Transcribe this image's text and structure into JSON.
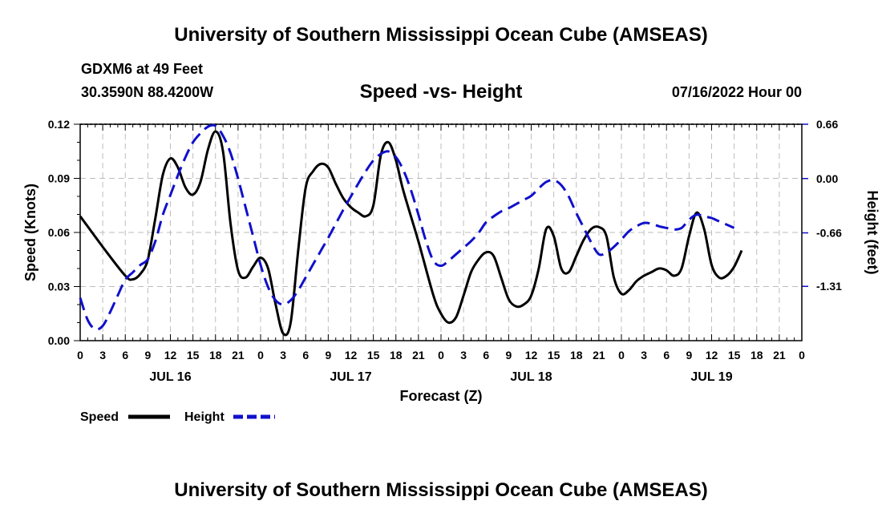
{
  "header": {
    "title": "University of Southern Mississippi Ocean Cube (AMSEAS)",
    "station": "GDXM6 at 49 Feet",
    "coords": "30.3590N  88.4200W",
    "subtitle": "Speed -vs- Height",
    "datetime": "07/16/2022 Hour 00"
  },
  "footer": {
    "title": "University of Southern Mississippi Ocean Cube (AMSEAS)"
  },
  "chart_data": {
    "type": "line",
    "title": "Speed -vs- Height",
    "xlabel": "Forecast (Z)",
    "ylabel": "Speed (Knots)",
    "y2label": "Height (feet)",
    "xlim": [
      0,
      96
    ],
    "ylim": [
      0,
      0.12
    ],
    "y2lim": [
      -1.97,
      0.66
    ],
    "grid": true,
    "x_tick_values": [
      0,
      3,
      6,
      9,
      12,
      15,
      18,
      21,
      24,
      27,
      30,
      33,
      36,
      39,
      42,
      45,
      48,
      51,
      54,
      57,
      60,
      63,
      66,
      69,
      72,
      75,
      78,
      81,
      84,
      87,
      90,
      93,
      96
    ],
    "x_tick_labels": [
      "0",
      "3",
      "6",
      "9",
      "12",
      "15",
      "18",
      "21",
      "0",
      "3",
      "6",
      "9",
      "12",
      "15",
      "18",
      "21",
      "0",
      "3",
      "6",
      "9",
      "12",
      "15",
      "18",
      "21",
      "0",
      "3",
      "6",
      "9",
      "12",
      "15",
      "18",
      "21",
      "0"
    ],
    "day_labels": [
      {
        "hour": 12,
        "label": "JUL 16"
      },
      {
        "hour": 36,
        "label": "JUL 17"
      },
      {
        "hour": 60,
        "label": "JUL 18"
      },
      {
        "hour": 84,
        "label": "JUL 19"
      }
    ],
    "y_ticks": [
      "0.00",
      "0.03",
      "0.06",
      "0.09",
      "0.12"
    ],
    "y_tick_values": [
      0,
      0.03,
      0.06,
      0.09,
      0.12
    ],
    "y2_ticks": [
      "-1.31",
      "-0.66",
      "0.00",
      "0.66"
    ],
    "y2_tick_values": [
      -1.31,
      -0.66,
      0.0,
      0.66
    ],
    "series": [
      {
        "name": "Speed",
        "axis": "left",
        "color": "#000000",
        "dash": "solid",
        "points": [
          [
            0,
            0.069
          ],
          [
            3,
            0.052
          ],
          [
            6,
            0.036
          ],
          [
            7,
            0.034
          ],
          [
            8,
            0.037
          ],
          [
            9,
            0.045
          ],
          [
            10,
            0.068
          ],
          [
            11,
            0.092
          ],
          [
            12,
            0.101
          ],
          [
            13,
            0.096
          ],
          [
            14,
            0.085
          ],
          [
            15,
            0.081
          ],
          [
            16,
            0.088
          ],
          [
            17,
            0.106
          ],
          [
            18,
            0.116
          ],
          [
            19,
            0.105
          ],
          [
            20,
            0.065
          ],
          [
            21,
            0.039
          ],
          [
            22,
            0.035
          ],
          [
            23,
            0.041
          ],
          [
            24,
            0.046
          ],
          [
            25,
            0.04
          ],
          [
            26,
            0.02
          ],
          [
            27,
            0.004
          ],
          [
            28,
            0.01
          ],
          [
            29,
            0.05
          ],
          [
            30,
            0.085
          ],
          [
            31,
            0.094
          ],
          [
            32,
            0.098
          ],
          [
            33,
            0.096
          ],
          [
            34,
            0.087
          ],
          [
            35,
            0.079
          ],
          [
            36,
            0.074
          ],
          [
            37,
            0.071
          ],
          [
            38,
            0.069
          ],
          [
            39,
            0.075
          ],
          [
            40,
            0.103
          ],
          [
            41,
            0.11
          ],
          [
            42,
            0.1
          ],
          [
            43,
            0.083
          ],
          [
            45,
            0.055
          ],
          [
            47,
            0.025
          ],
          [
            48,
            0.015
          ],
          [
            49,
            0.01
          ],
          [
            50,
            0.013
          ],
          [
            51,
            0.025
          ],
          [
            52,
            0.038
          ],
          [
            53,
            0.045
          ],
          [
            54,
            0.049
          ],
          [
            55,
            0.047
          ],
          [
            56,
            0.035
          ],
          [
            57,
            0.023
          ],
          [
            58,
            0.019
          ],
          [
            59,
            0.02
          ],
          [
            60,
            0.025
          ],
          [
            61,
            0.04
          ],
          [
            62,
            0.062
          ],
          [
            63,
            0.058
          ],
          [
            64,
            0.04
          ],
          [
            65,
            0.038
          ],
          [
            66,
            0.047
          ],
          [
            67,
            0.056
          ],
          [
            68,
            0.062
          ],
          [
            69,
            0.063
          ],
          [
            70,
            0.058
          ],
          [
            71,
            0.035
          ],
          [
            72,
            0.026
          ],
          [
            73,
            0.028
          ],
          [
            74,
            0.033
          ],
          [
            75,
            0.036
          ],
          [
            76,
            0.038
          ],
          [
            77,
            0.04
          ],
          [
            78,
            0.039
          ],
          [
            79,
            0.036
          ],
          [
            80,
            0.04
          ],
          [
            81,
            0.058
          ],
          [
            82,
            0.071
          ],
          [
            83,
            0.062
          ],
          [
            84,
            0.042
          ],
          [
            85,
            0.035
          ],
          [
            86,
            0.036
          ],
          [
            87,
            0.041
          ],
          [
            88,
            0.05
          ]
        ]
      },
      {
        "name": "Height",
        "axis": "right",
        "color": "#1010cc",
        "dash": "dashed",
        "points": [
          [
            0,
            -1.45
          ],
          [
            1,
            -1.72
          ],
          [
            2,
            -1.83
          ],
          [
            3,
            -1.79
          ],
          [
            4,
            -1.62
          ],
          [
            5,
            -1.42
          ],
          [
            6,
            -1.23
          ],
          [
            7,
            -1.14
          ],
          [
            8,
            -1.05
          ],
          [
            9,
            -0.98
          ],
          [
            10,
            -0.76
          ],
          [
            11,
            -0.44
          ],
          [
            12,
            -0.2
          ],
          [
            13,
            0.04
          ],
          [
            14,
            0.26
          ],
          [
            15,
            0.44
          ],
          [
            16,
            0.55
          ],
          [
            17,
            0.63
          ],
          [
            18,
            0.64
          ],
          [
            19,
            0.52
          ],
          [
            20,
            0.31
          ],
          [
            21,
            0.0
          ],
          [
            22,
            -0.35
          ],
          [
            23,
            -0.7
          ],
          [
            24,
            -1.05
          ],
          [
            25,
            -1.32
          ],
          [
            26,
            -1.48
          ],
          [
            27,
            -1.53
          ],
          [
            28,
            -1.48
          ],
          [
            29,
            -1.36
          ],
          [
            30,
            -1.2
          ],
          [
            31,
            -1.04
          ],
          [
            32,
            -0.88
          ],
          [
            33,
            -0.72
          ],
          [
            34,
            -0.55
          ],
          [
            35,
            -0.38
          ],
          [
            36,
            -0.22
          ],
          [
            37,
            -0.06
          ],
          [
            38,
            0.09
          ],
          [
            39,
            0.22
          ],
          [
            40,
            0.3
          ],
          [
            41,
            0.33
          ],
          [
            42,
            0.26
          ],
          [
            43,
            0.1
          ],
          [
            44,
            -0.14
          ],
          [
            45,
            -0.44
          ],
          [
            46,
            -0.76
          ],
          [
            47,
            -1.0
          ],
          [
            48,
            -1.06
          ],
          [
            49,
            -1.0
          ],
          [
            50,
            -0.92
          ],
          [
            51,
            -0.84
          ],
          [
            52,
            -0.76
          ],
          [
            53,
            -0.66
          ],
          [
            54,
            -0.53
          ],
          [
            55,
            -0.46
          ],
          [
            56,
            -0.4
          ],
          [
            57,
            -0.36
          ],
          [
            58,
            -0.31
          ],
          [
            59,
            -0.26
          ],
          [
            60,
            -0.21
          ],
          [
            61,
            -0.12
          ],
          [
            62,
            -0.04
          ],
          [
            63,
            -0.02
          ],
          [
            64,
            -0.08
          ],
          [
            65,
            -0.22
          ],
          [
            66,
            -0.42
          ],
          [
            67,
            -0.6
          ],
          [
            68,
            -0.78
          ],
          [
            69,
            -0.92
          ],
          [
            70,
            -0.9
          ],
          [
            71,
            -0.83
          ],
          [
            72,
            -0.74
          ],
          [
            73,
            -0.64
          ],
          [
            74,
            -0.58
          ],
          [
            75,
            -0.54
          ],
          [
            76,
            -0.55
          ],
          [
            77,
            -0.58
          ],
          [
            78,
            -0.6
          ],
          [
            79,
            -0.62
          ],
          [
            80,
            -0.6
          ],
          [
            81,
            -0.5
          ],
          [
            82,
            -0.44
          ],
          [
            83,
            -0.46
          ],
          [
            84,
            -0.48
          ],
          [
            85,
            -0.52
          ],
          [
            86,
            -0.56
          ],
          [
            87,
            -0.6
          ]
        ]
      }
    ],
    "legend": [
      {
        "label": "Speed",
        "color": "#000000",
        "dash": "solid"
      },
      {
        "label": "Height",
        "color": "#1010cc",
        "dash": "dashed"
      }
    ],
    "legend_position": "bottom-left"
  }
}
